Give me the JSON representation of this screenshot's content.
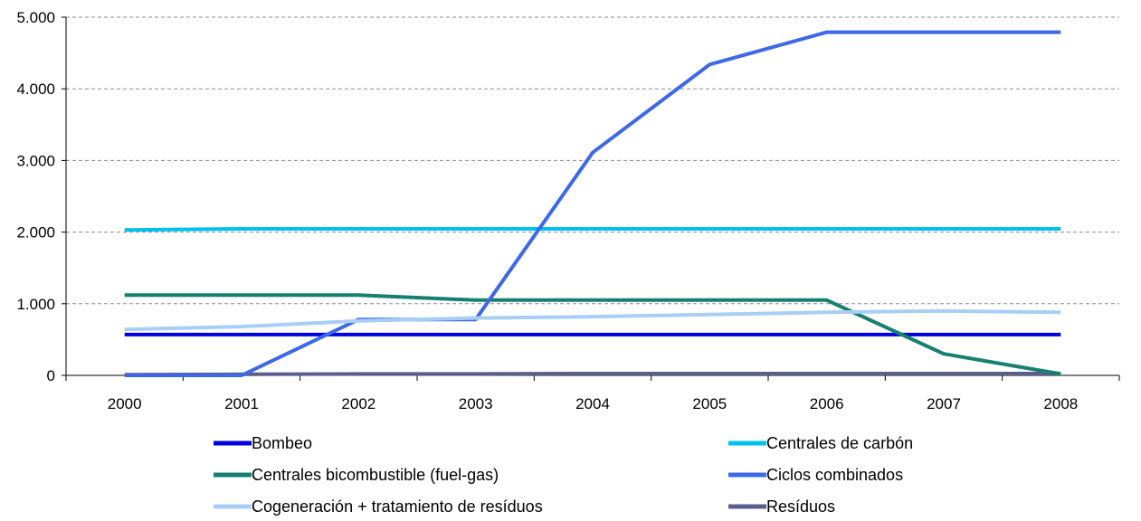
{
  "chart_data": {
    "type": "line",
    "title": "",
    "xlabel": "",
    "ylabel": "",
    "x": [
      "2000",
      "2001",
      "2002",
      "2003",
      "2004",
      "2005",
      "2006",
      "2007",
      "2008"
    ],
    "ylim": [
      0,
      5000
    ],
    "yticks": [
      {
        "value": 0,
        "label": "0"
      },
      {
        "value": 1000,
        "label": "1.000"
      },
      {
        "value": 2000,
        "label": "2.000"
      },
      {
        "value": 3000,
        "label": "3.000"
      },
      {
        "value": 4000,
        "label": "4.000"
      },
      {
        "value": 5000,
        "label": "5.000"
      }
    ],
    "grid": "horizontal dashed",
    "legend_position": "bottom",
    "series": [
      {
        "name": "Bombeo",
        "color": "#0000e0",
        "values": [
          570,
          570,
          570,
          570,
          570,
          570,
          570,
          570,
          570
        ]
      },
      {
        "name": "Centrales de carbón",
        "color": "#00c0f0",
        "values": [
          2030,
          2045,
          2045,
          2045,
          2045,
          2045,
          2045,
          2045,
          2045
        ]
      },
      {
        "name": "Centrales bicombustible (fuel-gas)",
        "color": "#168070",
        "values": [
          1120,
          1120,
          1120,
          1050,
          1050,
          1050,
          1050,
          300,
          20
        ]
      },
      {
        "name": "Ciclos combinados",
        "color": "#3d68e8",
        "values": [
          0,
          0,
          780,
          780,
          3110,
          4340,
          4790,
          4790,
          4790
        ]
      },
      {
        "name": "Cogeneración + tratamiento de resíduos",
        "color": "#a8cef6",
        "values": [
          640,
          680,
          760,
          800,
          820,
          850,
          880,
          900,
          880
        ]
      },
      {
        "name": "Resíduos",
        "color": "#5b5e8c",
        "values": [
          10,
          15,
          20,
          20,
          25,
          25,
          25,
          25,
          25
        ]
      }
    ]
  }
}
